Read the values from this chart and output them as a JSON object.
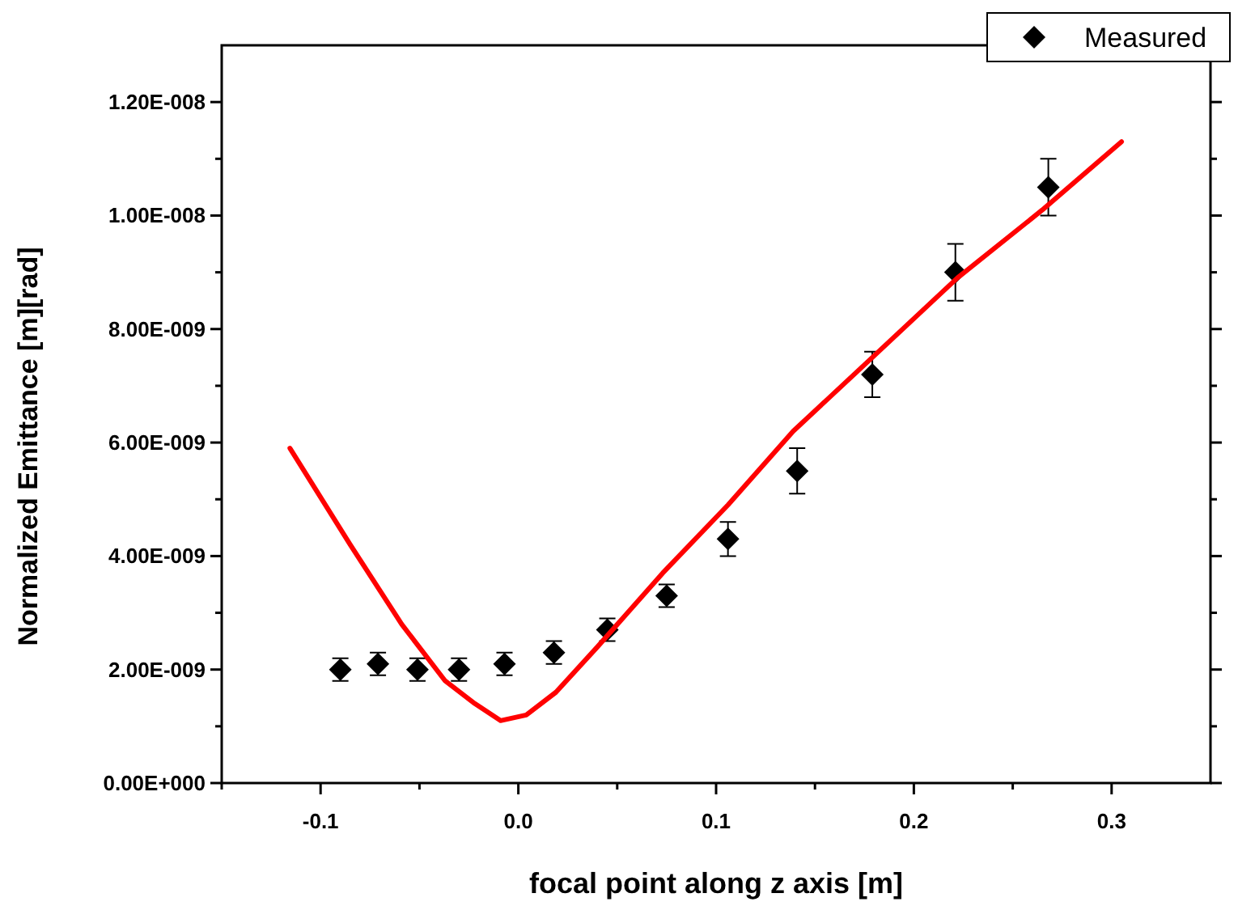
{
  "chart_data": {
    "type": "scatter",
    "xlabel": "focal point along z axis [m]",
    "ylabel": "Normalized Emittance [m][rad]",
    "xlim": [
      -0.15,
      0.35
    ],
    "ylim": [
      0,
      1.3e-08
    ],
    "xticks": [
      {
        "value": -0.15,
        "label": null
      },
      {
        "value": -0.1,
        "label": "-0.1"
      },
      {
        "value": -0.05,
        "label": null
      },
      {
        "value": 0,
        "label": "0.0"
      },
      {
        "value": 0.05,
        "label": null
      },
      {
        "value": 0.1,
        "label": "0.1"
      },
      {
        "value": 0.15,
        "label": null
      },
      {
        "value": 0.2,
        "label": "0.2"
      },
      {
        "value": 0.25,
        "label": null
      },
      {
        "value": 0.3,
        "label": "0.3"
      }
    ],
    "yticks": [
      {
        "value": 0,
        "label": "0.00E+000"
      },
      {
        "value": 1e-09,
        "label": null
      },
      {
        "value": 2e-09,
        "label": "2.00E-009"
      },
      {
        "value": 3e-09,
        "label": null
      },
      {
        "value": 4e-09,
        "label": "4.00E-009"
      },
      {
        "value": 5e-09,
        "label": null
      },
      {
        "value": 6e-09,
        "label": "6.00E-009"
      },
      {
        "value": 7e-09,
        "label": null
      },
      {
        "value": 8e-09,
        "label": "8.00E-009"
      },
      {
        "value": 9e-09,
        "label": null
      },
      {
        "value": 1e-08,
        "label": "1.00E-008"
      },
      {
        "value": 1.1e-08,
        "label": null
      },
      {
        "value": 1.2e-08,
        "label": "1.20E-008"
      }
    ],
    "legend": "top right",
    "grid": false,
    "series": [
      {
        "name": "Measured",
        "marker": "diamond",
        "color": "#000000",
        "x": [
          -0.09,
          -0.071,
          -0.051,
          -0.03,
          -0.007,
          0.018,
          0.045,
          0.075,
          0.106,
          0.141,
          0.179,
          0.221,
          0.268
        ],
        "values": [
          2e-09,
          2.1e-09,
          2e-09,
          2e-09,
          2.1e-09,
          2.3e-09,
          2.7e-09,
          3.3e-09,
          4.3e-09,
          5.5e-09,
          7.2e-09,
          9e-09,
          1.05e-08
        ],
        "errors": [
          2e-10,
          2e-10,
          2e-10,
          2e-10,
          2e-10,
          2e-10,
          2e-10,
          2e-10,
          3e-10,
          4e-10,
          4e-10,
          5e-10,
          5e-10
        ]
      },
      {
        "type": "line",
        "marker": "none",
        "line_style": "solid",
        "color": "#ff0000",
        "x": [
          -0.1155,
          -0.085,
          -0.059,
          -0.037,
          -0.022,
          -0.009,
          0.004,
          0.019,
          0.04,
          0.073,
          0.106,
          0.139,
          0.179,
          0.222,
          0.265,
          0.305
        ],
        "values": [
          5.9e-09,
          4.2e-09,
          2.8e-09,
          1.8e-09,
          1.4e-09,
          1.1e-09,
          1.2e-09,
          1.6e-09,
          2.4e-09,
          3.7e-09,
          4.9e-09,
          6.2e-09,
          7.5e-09,
          8.9e-09,
          1.01e-08,
          1.13e-08
        ]
      }
    ]
  }
}
